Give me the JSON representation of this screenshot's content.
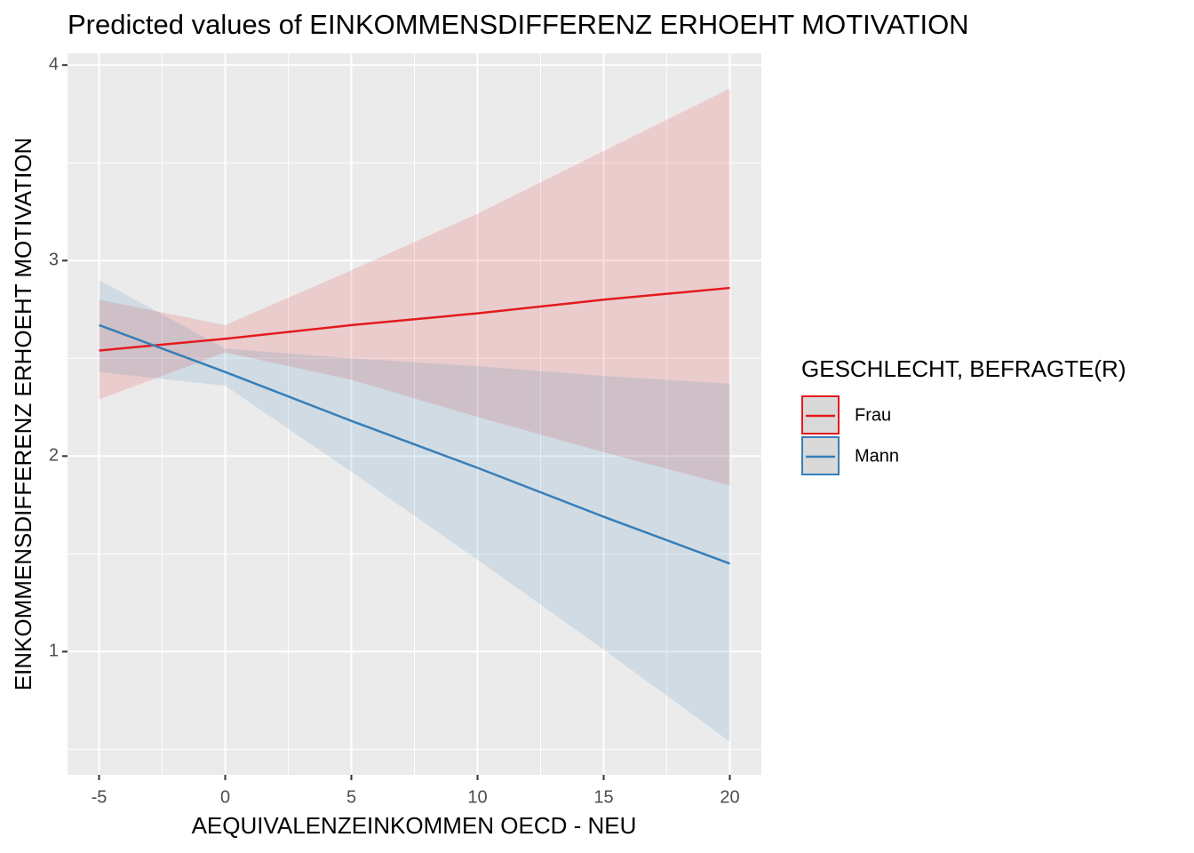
{
  "chart_data": {
    "type": "line",
    "title": "Predicted values of EINKOMMENSDIFFERENZ ERHOEHT MOTIVATION",
    "x_label": "AEQUIVALENZEINKOMMEN OECD - NEU",
    "y_label": "EINKOMMENSDIFFERENZ ERHOEHT MOTIVATION",
    "legend_title": "GESCHLECHT, BEFRAGTE(R)",
    "x": [
      -5,
      0,
      5,
      10,
      15,
      20
    ],
    "series": [
      {
        "name": "Frau",
        "color": "#e41a1c",
        "values": [
          2.54,
          2.6,
          2.67,
          2.73,
          2.8,
          2.86
        ],
        "lower": [
          2.29,
          2.53,
          2.39,
          2.2,
          2.02,
          1.85
        ],
        "upper": [
          2.8,
          2.67,
          2.95,
          3.24,
          3.56,
          3.88
        ]
      },
      {
        "name": "Mann",
        "color": "#377eb8",
        "values": [
          2.67,
          2.43,
          2.18,
          1.94,
          1.69,
          1.45
        ],
        "lower": [
          2.43,
          2.36,
          1.92,
          1.47,
          1.01,
          0.54
        ],
        "upper": [
          2.9,
          2.55,
          2.5,
          2.46,
          2.41,
          2.37
        ]
      }
    ],
    "xlim": [
      -6.25,
      21.25
    ],
    "xticks": [
      -5,
      0,
      5,
      10,
      15,
      20
    ],
    "ylim": [
      0.37,
      4.06
    ],
    "yticks": [
      1,
      2,
      3,
      4
    ],
    "grid": true
  }
}
